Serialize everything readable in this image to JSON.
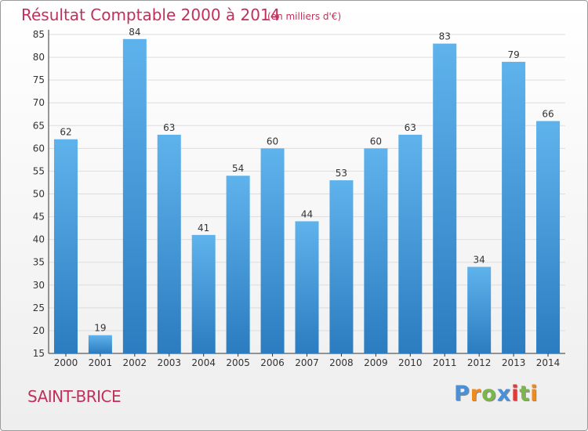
{
  "chart_data": {
    "type": "bar",
    "title": "Résultat Comptable 2000 à 2014",
    "subtitle": "(en milliers d'€)",
    "categories": [
      "2000",
      "2001",
      "2002",
      "2003",
      "2004",
      "2005",
      "2006",
      "2007",
      "2008",
      "2009",
      "2010",
      "2011",
      "2012",
      "2013",
      "2014"
    ],
    "values": [
      62,
      19,
      84,
      63,
      41,
      54,
      60,
      44,
      53,
      60,
      63,
      83,
      34,
      79,
      66
    ],
    "ylim": [
      15,
      85
    ],
    "yticks": [
      15,
      20,
      25,
      30,
      35,
      40,
      45,
      50,
      55,
      60,
      65,
      70,
      75,
      80,
      85
    ],
    "grid": true,
    "colors": {
      "bar_light": "#5fb3ec",
      "bar_dark": "#2b7cc0",
      "grid": "#dddddd",
      "title": "#c0305a"
    }
  },
  "footer": {
    "commune": "SAINT-BRICE",
    "brand": "Proxiti",
    "brand_colors": [
      "#4a90d9",
      "#f08a1c",
      "#7ab648",
      "#4a90d9",
      "#e03a3a",
      "#7ab648",
      "#f08a1c"
    ]
  }
}
